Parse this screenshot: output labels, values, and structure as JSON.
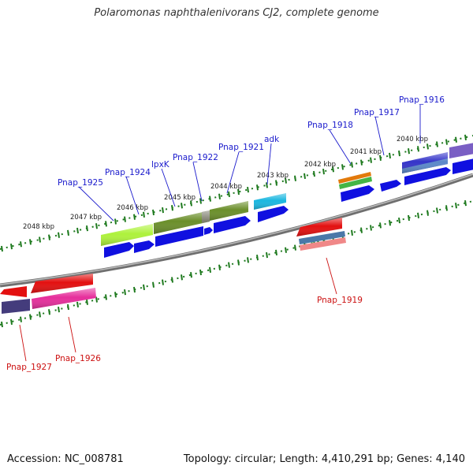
{
  "title": "Polaromonas naphthalenivorans CJ2, complete genome",
  "footer": {
    "accession": "Accession: NC_008781",
    "genome_info": "Topology: circular; Length: 4,410,291 bp; Genes: 4,140"
  },
  "colors": {
    "forward_label": "#1a1acc",
    "reverse_label": "#cc1111",
    "tick": "#1f7a1f",
    "backbone": "#8a8a8a"
  },
  "scale_ticks": [
    "2040 kbp",
    "2041 kbp",
    "2042 kbp",
    "2043 kbp",
    "2044 kbp",
    "2045 kbp",
    "2046 kbp",
    "2047 kbp",
    "2048 kbp"
  ],
  "forward_genes": [
    "Pnap_1916",
    "Pnap_1917",
    "Pnap_1918",
    "adk",
    "Pnap_1921",
    "Pnap_1922",
    "lpxK",
    "Pnap_1924",
    "Pnap_1925"
  ],
  "reverse_genes": [
    "Pnap_1919",
    "Pnap_1926",
    "Pnap_1927"
  ]
}
